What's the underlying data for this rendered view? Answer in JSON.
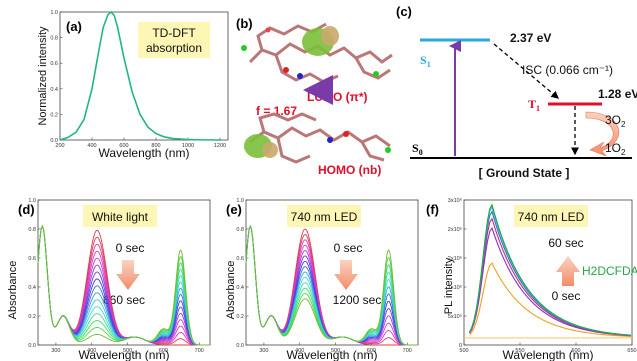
{
  "colors": {
    "yellow_box": "#fdf6b4",
    "teal": "#22b58a",
    "s1_line": "#2aa8e0",
    "t1_line": "#e0102a",
    "arrow_purple": "#9b59b6",
    "red_text": "#e0102a",
    "pl_green": "#2aa34a"
  },
  "chart_data": [
    {
      "id": "a",
      "type": "line",
      "panel_label": "(a)",
      "annotation": "TD-DFT absorption",
      "xlabel": "Wavelength (nm)",
      "ylabel": "Normalized intensity",
      "xlim": [
        200,
        1250
      ],
      "ylim": [
        0,
        1.0
      ],
      "x_ticks": [
        "200",
        "400",
        "600",
        "800",
        "1000",
        "1200"
      ],
      "y_ticks": [
        "0.0",
        "0.2",
        "0.4",
        "0.6",
        "0.8",
        "1.0"
      ],
      "series": [
        {
          "color": "#22b58a",
          "x": [
            200,
            250,
            300,
            350,
            400,
            440,
            470,
            500,
            520,
            540,
            560,
            600,
            650,
            700,
            750,
            800,
            850,
            900,
            1000,
            1100,
            1200
          ],
          "y": [
            0.0,
            0.02,
            0.06,
            0.16,
            0.4,
            0.68,
            0.88,
            0.98,
            1.0,
            0.97,
            0.88,
            0.64,
            0.38,
            0.2,
            0.1,
            0.05,
            0.025,
            0.012,
            0.004,
            0.001,
            0.0
          ]
        }
      ]
    },
    {
      "id": "d",
      "type": "line",
      "panel_label": "(d)",
      "annotation": "White light",
      "time_start": "0 sec",
      "time_end": "660 sec",
      "xlabel": "Wavelength (nm)",
      "ylabel": "Absorbance",
      "xlim": [
        250,
        730
      ],
      "ylim": [
        0,
        1.1
      ],
      "x_ticks": [
        "300",
        "400",
        "500",
        "600",
        "700"
      ],
      "y_ticks": [
        "0.0",
        "0.2",
        "0.4",
        "0.6",
        "0.8",
        "1.0"
      ],
      "series_count": 16,
      "soret_start": 0.87,
      "soret_end": 0.08,
      "q_band_end": 0.72
    },
    {
      "id": "e",
      "type": "line",
      "panel_label": "(e)",
      "annotation": "740 nm LED",
      "time_start": "0 sec",
      "time_end": "1200 sec",
      "xlabel": "Wavelength (nm)",
      "ylabel": "Absorbance",
      "xlim": [
        250,
        730
      ],
      "ylim": [
        0,
        1.1
      ],
      "x_ticks": [
        "300",
        "400",
        "500",
        "600",
        "700"
      ],
      "y_ticks": [
        "0.0",
        "0.2",
        "0.4",
        "0.6",
        "0.8",
        "1.0"
      ],
      "series_count": 14,
      "soret_start": 0.88,
      "soret_end": 0.35,
      "q_band_end": 0.72
    },
    {
      "id": "f",
      "type": "line",
      "panel_label": "(f)",
      "annotation": "740 nm LED",
      "time_start": "0 sec",
      "time_end": "60 sec",
      "probe": "H2DCFDA",
      "xlabel": "Wavelength (nm)",
      "ylabel": "PL intensity",
      "xlim": [
        500,
        650
      ],
      "ylim": [
        0,
        3.1
      ],
      "x_ticks": [
        "500",
        "550",
        "600",
        "650"
      ],
      "y_ticks": [
        "0",
        "5x10⁵",
        "1x10⁶",
        "2x10⁶",
        "2x10⁶",
        "3x10⁶"
      ],
      "series": [
        {
          "name": "0 sec",
          "color": "#f0a020",
          "peak": 1.75
        },
        {
          "color": "#8b2dbf",
          "peak": 2.5
        },
        {
          "color": "#c0307a",
          "peak": 2.7
        },
        {
          "color": "#3070d0",
          "peak": 2.85
        },
        {
          "color": "#33bbcc",
          "peak": 2.95
        },
        {
          "name": "60 sec",
          "color": "#2aa34a",
          "peak": 3.0
        }
      ],
      "baseline": 0.15
    }
  ],
  "panel_b": {
    "label": "(b)",
    "lumo": "LUMO (π*)",
    "homo": "HOMO (nb)",
    "f_value": "f = 1.67"
  },
  "panel_c": {
    "label": "(c)",
    "s1": "S",
    "s1_sub": "1",
    "t1": "T",
    "t1_sub": "1",
    "s0": "S",
    "s0_sub": "0",
    "s1_energy": "2.37 eV",
    "t1_energy": "1.28 eV",
    "isc": "ISC (0.066 cm⁻¹)",
    "o2_triplet": "3O",
    "o2_triplet_sub": "2",
    "o2_singlet": "1O",
    "o2_singlet_sub": "2",
    "ground": "[ Ground State ]"
  }
}
